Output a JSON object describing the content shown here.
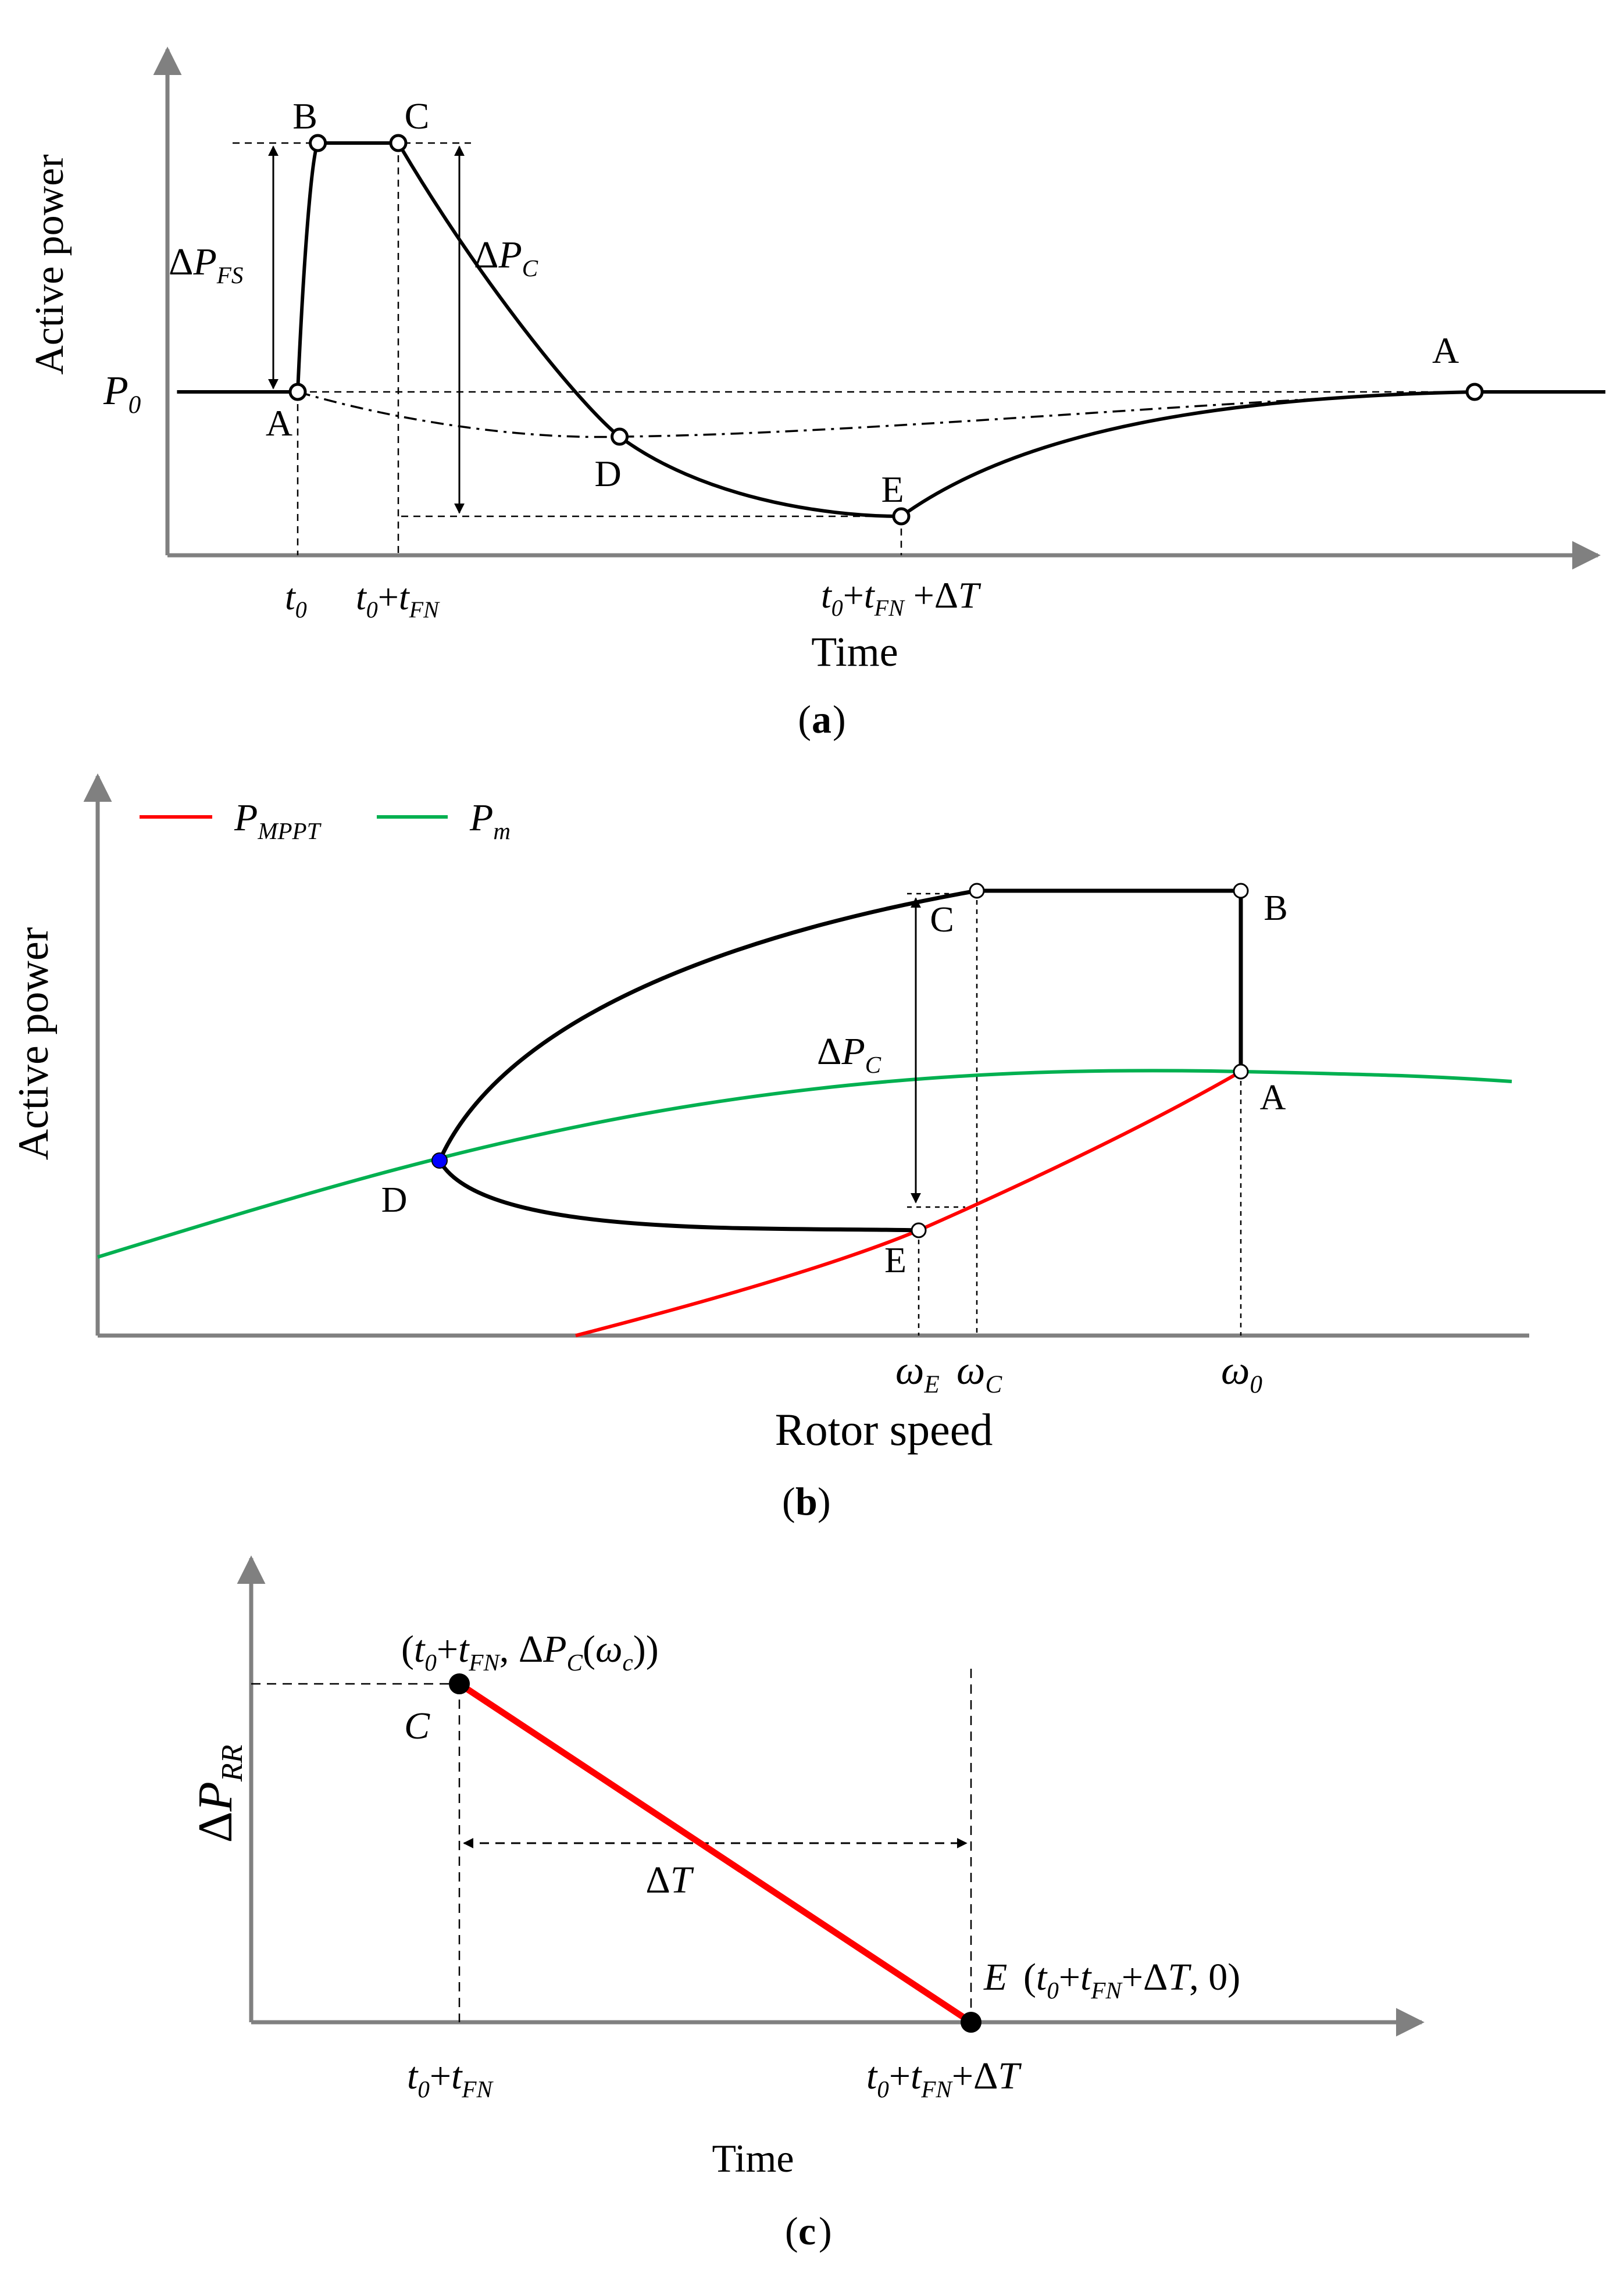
{
  "chart_data": [
    {
      "type": "line",
      "panel": "(a)",
      "panel_letter": "a",
      "xlabel": "Time",
      "ylabel": "Active power",
      "y_baseline_label": {
        "sym": "P",
        "sub": "0"
      },
      "x_ticks": [
        {
          "name": "t0",
          "parts": [
            [
              "t",
              "i"
            ],
            [
              "0",
              "s"
            ]
          ]
        },
        {
          "name": "t0+tFN",
          "parts": [
            [
              "t",
              "i"
            ],
            [
              "0",
              "s"
            ],
            [
              "+",
              "n"
            ],
            [
              "t",
              "i"
            ],
            [
              "FN",
              "s"
            ]
          ]
        },
        {
          "name": "t0+tFN+dT",
          "parts": [
            [
              "t",
              "i"
            ],
            [
              "0",
              "s"
            ],
            [
              "+",
              "n"
            ],
            [
              "t",
              "i"
            ],
            [
              "FN",
              "s"
            ],
            [
              " +ΔT",
              "m"
            ]
          ]
        }
      ],
      "annotations": [
        {
          "name": "delta-p-fs",
          "sym": "ΔP",
          "sub": "FS"
        },
        {
          "name": "delta-p-c",
          "sym": "ΔP",
          "sub": "C"
        }
      ],
      "points": [
        {
          "label": "A",
          "t": 0.0,
          "p": 0.0
        },
        {
          "label": "B",
          "t": 0.1,
          "p": 1.0
        },
        {
          "label": "C",
          "t": 0.5,
          "p": 1.0
        },
        {
          "label": "D",
          "t": 1.6,
          "p": -0.18
        },
        {
          "label": "E",
          "t": 3.0,
          "p": -0.5
        },
        {
          "label": "A",
          "t": 5.85,
          "p": 0.0
        }
      ],
      "series": [
        {
          "name": "power-response",
          "style": "solid",
          "x": [
            -0.6,
            0.0,
            0.1,
            0.5,
            0.8,
            1.1,
            1.6,
            2.2,
            3.0,
            3.5,
            4.0,
            4.7,
            5.4,
            5.85,
            6.5
          ],
          "y": [
            0,
            0,
            1.0,
            1.0,
            0.72,
            0.42,
            -0.18,
            -0.42,
            -0.5,
            -0.3,
            -0.16,
            -0.07,
            -0.02,
            0,
            0
          ]
        },
        {
          "name": "mechanical-power",
          "style": "dash-dot",
          "x": [
            0.0,
            0.5,
            1.0,
            1.6,
            2.4,
            3.4,
            4.5,
            5.85
          ],
          "y": [
            0,
            -0.1,
            -0.17,
            -0.18,
            -0.15,
            -0.1,
            -0.05,
            0
          ]
        }
      ]
    },
    {
      "type": "line",
      "panel": "(b)",
      "panel_letter": "b",
      "xlabel": "Rotor speed",
      "ylabel": "Active power",
      "legend": [
        {
          "name": "p-mppt",
          "sym": "P",
          "sub": "MPPT",
          "color": "#ff0000"
        },
        {
          "name": "p-m",
          "sym": "P",
          "sub": "m",
          "color": "#00b050"
        }
      ],
      "x_ticks": [
        {
          "name": "omega-e",
          "sym": "ω",
          "sub": "E"
        },
        {
          "name": "omega-c",
          "sym": "ω",
          "sub": "C"
        },
        {
          "name": "omega-0",
          "sym": "ω",
          "sub": "0"
        }
      ],
      "annotation": {
        "sym": "ΔP",
        "sub": "C"
      },
      "points": [
        {
          "label": "A",
          "w": 0.81,
          "p": 0.56
        },
        {
          "label": "B",
          "w": 0.81,
          "p": 0.98
        },
        {
          "label": "C",
          "w": 0.62,
          "p": 0.98
        },
        {
          "label": "D",
          "w": 0.24,
          "p": 0.39
        },
        {
          "label": "E",
          "w": 0.58,
          "p": 0.23
        }
      ],
      "series": [
        {
          "name": "P_MPPT",
          "color": "#ff0000",
          "x": [
            0.33,
            0.45,
            0.58,
            0.7,
            0.81
          ],
          "y": [
            0.0,
            0.1,
            0.23,
            0.39,
            0.56
          ]
        },
        {
          "name": "P_m",
          "color": "#00b050",
          "x": [
            0.0,
            0.24,
            0.5,
            0.81,
            1.0
          ],
          "y": [
            0.2,
            0.39,
            0.52,
            0.56,
            0.54
          ]
        },
        {
          "name": "trajectory",
          "color": "#000000",
          "x": [
            0.81,
            0.81,
            0.62,
            0.24,
            0.58
          ],
          "y": [
            0.56,
            0.98,
            0.98,
            0.39,
            0.23
          ]
        }
      ]
    },
    {
      "type": "line",
      "panel": "(c)",
      "panel_letter": "c",
      "xlabel": "Time",
      "ylabel": {
        "sym": "ΔP",
        "sub": "RR"
      },
      "x_ticks": [
        {
          "name": "t0+tFN",
          "parts": [
            [
              "t",
              "i"
            ],
            [
              "0",
              "s"
            ],
            [
              "+",
              "n"
            ],
            [
              "t",
              "i"
            ],
            [
              "FN",
              "s"
            ]
          ]
        },
        {
          "name": "t0+tFN+dT",
          "parts": [
            [
              "t",
              "i"
            ],
            [
              "0",
              "s"
            ],
            [
              "+",
              "n"
            ],
            [
              "t",
              "i"
            ],
            [
              "FN",
              "s"
            ],
            [
              "+ΔT",
              "m"
            ]
          ]
        }
      ],
      "annotation": {
        "label": "ΔT"
      },
      "points": [
        {
          "label": "C",
          "t": 0.0,
          "p": 1.0,
          "coord_parts": [
            [
              "(",
              "n"
            ],
            [
              "t",
              "i"
            ],
            [
              "0",
              "s"
            ],
            [
              "+",
              "n"
            ],
            [
              "t",
              "i"
            ],
            [
              "FN",
              "s"
            ],
            [
              ", Δ",
              "n"
            ],
            [
              "P",
              "i"
            ],
            [
              "C",
              "s"
            ],
            [
              "(",
              "n"
            ],
            [
              "ω",
              "i"
            ],
            [
              "c",
              "s"
            ],
            [
              "))",
              "n"
            ]
          ]
        },
        {
          "label": "E",
          "t": 1.0,
          "p": 0.0,
          "coord_parts": [
            [
              "(",
              "n"
            ],
            [
              "t",
              "i"
            ],
            [
              "0",
              "s"
            ],
            [
              "+",
              "n"
            ],
            [
              "t",
              "i"
            ],
            [
              "FN",
              "s"
            ],
            [
              "+Δ",
              "n"
            ],
            [
              "T",
              "i"
            ],
            [
              ", 0)",
              "n"
            ]
          ]
        }
      ],
      "series": [
        {
          "name": "delta-p-rr",
          "color": "#ff0000",
          "x": [
            0.0,
            1.0
          ],
          "y": [
            1.0,
            0.0
          ]
        }
      ]
    }
  ]
}
